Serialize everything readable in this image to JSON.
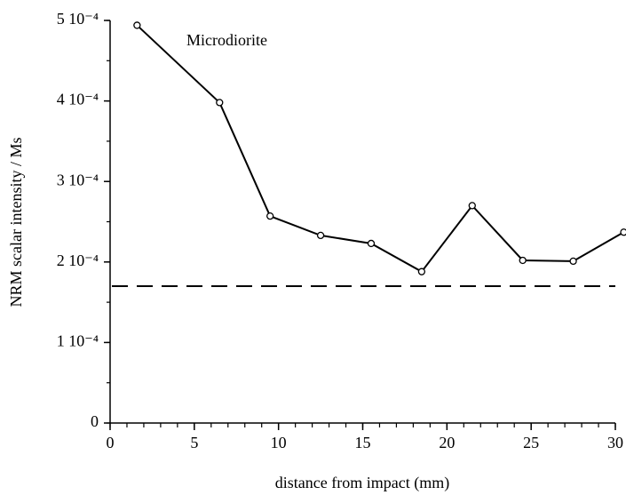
{
  "chart_data": {
    "type": "line",
    "annotation": "Microdiorite",
    "x_label": "distance from impact (mm)",
    "y_label": "NRM scalar intensity / Ms",
    "x": [
      1.6,
      6.5,
      9.5,
      12.5,
      15.5,
      18.5,
      21.5,
      24.5,
      27.5,
      30.5
    ],
    "series": [
      {
        "color": "#000000",
        "values": [
          0.000494,
          0.000398,
          0.000257,
          0.000233,
          0.000223,
          0.000188,
          0.00027,
          0.000202,
          0.000201,
          0.000237
        ]
      }
    ],
    "reference_line": 0.00017,
    "xlim": [
      0,
      30
    ],
    "xticks": [
      0,
      5,
      10,
      15,
      20,
      25,
      30
    ],
    "xminor_step": 1,
    "ylim": [
      0,
      0.0005
    ],
    "yticks": [
      0,
      {
        "value": 0.0001,
        "label": "1 10⁻⁴"
      },
      {
        "value": 0.0002,
        "label": "2 10⁻⁴"
      },
      {
        "value": 0.0003,
        "label": "3 10⁻⁴"
      },
      {
        "value": 0.0004,
        "label": "4 10⁻⁴"
      },
      {
        "value": 0.0005,
        "label": "5 10⁻⁴"
      }
    ],
    "yminor_step": 5e-05,
    "grid": false
  }
}
